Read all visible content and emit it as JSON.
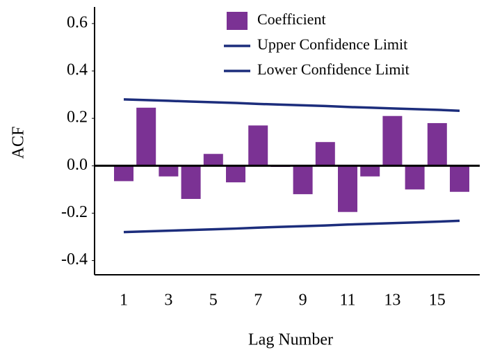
{
  "chart_data": {
    "type": "bar",
    "x_label": "Lag Number",
    "y_label": "ACF",
    "categories": [
      1,
      null,
      3,
      null,
      5,
      null,
      7,
      null,
      9,
      null,
      11,
      null,
      13,
      null,
      15,
      null
    ],
    "series": [
      {
        "name": "Coefficient",
        "color": "#7b3294",
        "type": "bar",
        "values": [
          -0.065,
          0.245,
          -0.045,
          -0.14,
          0.05,
          -0.07,
          0.17,
          -0.005,
          -0.12,
          0.1,
          -0.195,
          -0.045,
          0.21,
          -0.1,
          0.18,
          -0.11
        ]
      },
      {
        "name": "Upper Confidence Limit",
        "color": "#1c2d7c",
        "type": "line",
        "values": [
          0.28,
          0.277,
          0.274,
          0.271,
          0.268,
          0.265,
          0.261,
          0.258,
          0.255,
          0.252,
          0.248,
          0.245,
          0.242,
          0.239,
          0.236,
          0.232
        ]
      },
      {
        "name": "Lower Confidence Limit",
        "color": "#1c2d7c",
        "type": "line",
        "values": [
          -0.28,
          -0.277,
          -0.274,
          -0.271,
          -0.268,
          -0.265,
          -0.261,
          -0.258,
          -0.255,
          -0.252,
          -0.248,
          -0.245,
          -0.242,
          -0.239,
          -0.236,
          -0.232
        ]
      }
    ],
    "ylim": [
      -0.46,
      0.67
    ],
    "yticks": [
      {
        "value": -0.4,
        "label": "-0.4"
      },
      {
        "value": -0.2,
        "label": "-0.2"
      },
      {
        "value": 0,
        "label": "0.0"
      },
      {
        "value": 0.2,
        "label": "0.2"
      },
      {
        "value": 0.4,
        "label": "0.4"
      },
      {
        "value": 0.6,
        "label": "0.6"
      }
    ]
  }
}
